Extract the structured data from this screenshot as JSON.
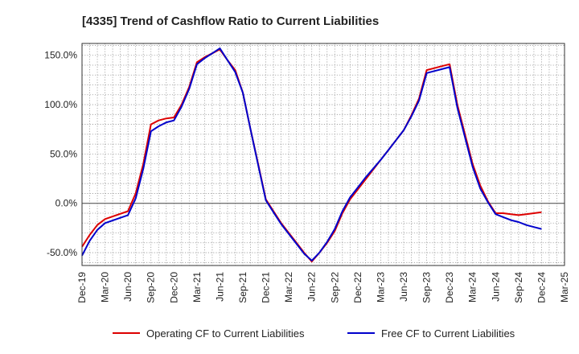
{
  "chart_data": {
    "type": "line",
    "title": "[4335]  Trend of Cashflow Ratio to Current Liabilities",
    "xlabel": "",
    "ylabel": "",
    "x_tick_labels": [
      "Dec-19",
      "Mar-20",
      "Jun-20",
      "Sep-20",
      "Dec-20",
      "Mar-21",
      "Jun-21",
      "Sep-21",
      "Dec-21",
      "Mar-22",
      "Jun-22",
      "Sep-22",
      "Dec-22",
      "Mar-23",
      "Jun-23",
      "Sep-23",
      "Dec-23",
      "Mar-24",
      "Jun-24",
      "Sep-24",
      "Dec-24",
      "Mar-25"
    ],
    "y_tick_labels": [
      "150.0%",
      "100.0%",
      "50.0%",
      "0.0%",
      "-50.0%"
    ],
    "y_ticks": [
      150,
      100,
      50,
      0,
      -50
    ],
    "ylim": [
      -63,
      162
    ],
    "x_months_range": [
      "Dec-19",
      "Mar-25"
    ],
    "grid": true,
    "legend_position": "bottom",
    "series": [
      {
        "name": "Operating CF to Current Liabilities",
        "color": "#dd0000",
        "x": [
          "Dec-19",
          "Jan-20",
          "Feb-20",
          "Mar-20",
          "Jun-20",
          "Jul-20",
          "Aug-20",
          "Sep-20",
          "Oct-20",
          "Nov-20",
          "Dec-20",
          "Jan-21",
          "Feb-21",
          "Mar-21",
          "Apr-21",
          "May-21",
          "Jun-21",
          "Jul-21",
          "Aug-21",
          "Sep-21",
          "Oct-21",
          "Nov-21",
          "Dec-21",
          "Jan-22",
          "Feb-22",
          "Mar-22",
          "Apr-22",
          "May-22",
          "Jun-22",
          "Jul-22",
          "Aug-22",
          "Sep-22",
          "Oct-22",
          "Nov-22",
          "Dec-22",
          "Jan-23",
          "Feb-23",
          "Mar-23",
          "Apr-23",
          "May-23",
          "Jun-23",
          "Jul-23",
          "Aug-23",
          "Sep-23",
          "Oct-23",
          "Nov-23",
          "Dec-23",
          "Jan-24",
          "Feb-24",
          "Mar-24",
          "Apr-24",
          "May-24",
          "Jun-24",
          "Jul-24",
          "Aug-24",
          "Sep-24",
          "Oct-24",
          "Nov-24",
          "Dec-24"
        ],
        "values": [
          -44,
          -32,
          -22,
          -16,
          -8,
          10,
          40,
          80,
          84,
          86,
          87,
          100,
          118,
          143,
          148,
          152,
          156,
          145,
          135,
          112,
          75,
          40,
          4,
          -8,
          -20,
          -30,
          -40,
          -50,
          -59,
          -50,
          -40,
          -28,
          -10,
          4,
          14,
          24,
          34,
          44,
          54,
          64,
          74,
          89,
          106,
          135,
          137,
          139,
          141,
          100,
          70,
          40,
          18,
          2,
          -10,
          -10,
          -11,
          -12,
          -11,
          -10,
          -9
        ]
      },
      {
        "name": "Free CF to Current Liabilities",
        "color": "#0000cc",
        "x": [
          "Dec-19",
          "Jan-20",
          "Feb-20",
          "Mar-20",
          "Jun-20",
          "Jul-20",
          "Aug-20",
          "Sep-20",
          "Oct-20",
          "Nov-20",
          "Dec-20",
          "Jan-21",
          "Feb-21",
          "Mar-21",
          "Apr-21",
          "May-21",
          "Jun-21",
          "Jul-21",
          "Aug-21",
          "Sep-21",
          "Oct-21",
          "Nov-21",
          "Dec-21",
          "Jan-22",
          "Feb-22",
          "Mar-22",
          "Apr-22",
          "May-22",
          "Jun-22",
          "Jul-22",
          "Aug-22",
          "Sep-22",
          "Oct-22",
          "Nov-22",
          "Dec-22",
          "Jan-23",
          "Feb-23",
          "Mar-23",
          "Apr-23",
          "May-23",
          "Jun-23",
          "Jul-23",
          "Aug-23",
          "Sep-23",
          "Oct-23",
          "Nov-23",
          "Dec-23",
          "Jan-24",
          "Feb-24",
          "Mar-24",
          "Apr-24",
          "May-24",
          "Jun-24",
          "Jul-24",
          "Aug-24",
          "Sep-24",
          "Oct-24",
          "Nov-24",
          "Dec-24"
        ],
        "values": [
          -53,
          -38,
          -27,
          -20,
          -12,
          5,
          35,
          73,
          78,
          82,
          84,
          98,
          116,
          141,
          147,
          152,
          157,
          145,
          133,
          112,
          75,
          39,
          3,
          -9,
          -21,
          -31,
          -41,
          -51,
          -58,
          -50,
          -39,
          -26,
          -8,
          6,
          16,
          26,
          35,
          44,
          54,
          64,
          74,
          88,
          104,
          132,
          134,
          136,
          138,
          97,
          67,
          37,
          15,
          1,
          -11,
          -14,
          -17,
          -19,
          -22,
          -24,
          -26
        ]
      }
    ]
  }
}
